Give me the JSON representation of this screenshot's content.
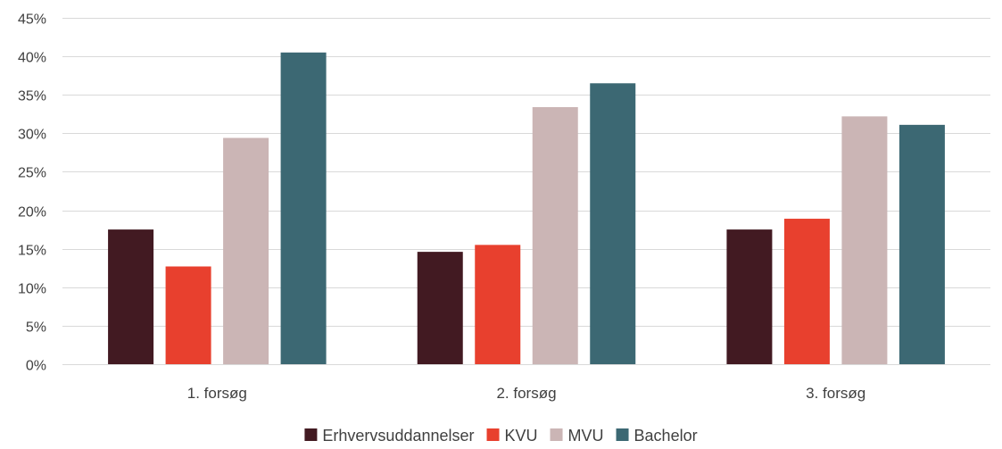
{
  "chart_data": {
    "type": "bar",
    "title": "",
    "xlabel": "",
    "ylabel": "",
    "categories": [
      "1. forsøg",
      "2. forsøg",
      "3. forsøg"
    ],
    "series": [
      {
        "name": "Erhvervsuddannelser",
        "color": "#421a22",
        "values": [
          0.175,
          0.146,
          0.175
        ]
      },
      {
        "name": "KVU",
        "color": "#e8402e",
        "values": [
          0.127,
          0.155,
          0.189
        ]
      },
      {
        "name": "MVU",
        "color": "#cbb5b5",
        "values": [
          0.294,
          0.334,
          0.322
        ]
      },
      {
        "name": "Bachelor",
        "color": "#3c6873",
        "values": [
          0.405,
          0.365,
          0.311
        ]
      }
    ],
    "ylim": [
      0,
      0.45
    ],
    "y_ticks": [
      0,
      0.05,
      0.1,
      0.15,
      0.2,
      0.25,
      0.3,
      0.35,
      0.4,
      0.45
    ],
    "y_tick_labels": [
      "0%",
      "5%",
      "10%",
      "15%",
      "20%",
      "25%",
      "30%",
      "35%",
      "40%",
      "45%"
    ],
    "grid": true,
    "legend_position": "bottom"
  }
}
